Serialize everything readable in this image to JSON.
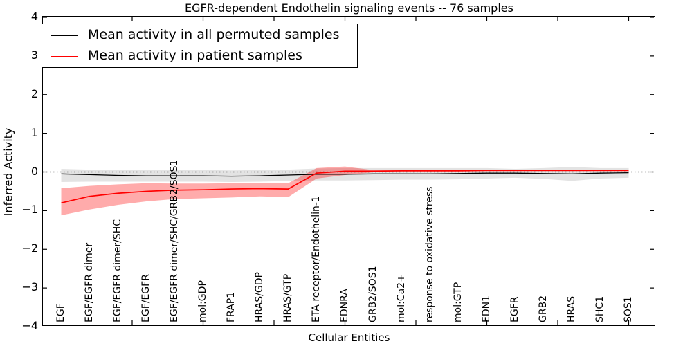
{
  "title": "EGFR-dependent Endothelin signaling events -- 76 samples",
  "axes": {
    "xlabel": "Cellular Entities",
    "ylabel": "Inferred Activity"
  },
  "legend": {
    "position": "upper left",
    "entries": [
      {
        "label": "Mean activity in all permuted samples",
        "color": "#000000"
      },
      {
        "label": "Mean activity in patient samples",
        "color": "#ff0000"
      }
    ]
  },
  "chart_data": {
    "type": "line",
    "title": "EGFR-dependent Endothelin signaling events -- 76 samples",
    "xlabel": "Cellular Entities",
    "ylabel": "Inferred Activity",
    "ylim": [
      -4,
      4
    ],
    "y_ticks": [
      4,
      3,
      2,
      1,
      0,
      -1,
      -2,
      -3,
      -4
    ],
    "grid": false,
    "zero_reference_line": "black dotted at y=0",
    "legend_position": "upper left",
    "categories": [
      "EGF",
      "EGF/EGFR dimer",
      "EGF/EGFR dimer/SHC",
      "EGF/EGFR",
      "EGF/EGFR dimer/SHC/GRB2/SOS1",
      "mol:GDP",
      "FRAP1",
      "HRAS/GDP",
      "HRAS/GTP",
      "ETA receptor/Endothelin-1",
      "EDNRA",
      "GRB2/SOS1",
      "mol:Ca2+",
      "response to oxidative stress",
      "mol:GTP",
      "EDN1",
      "EGFR",
      "GRB2",
      "HRAS",
      "SHC1",
      "SOS1"
    ],
    "series": [
      {
        "name": "Mean activity in all permuted samples",
        "color": "#000000",
        "band_color": "rgba(0,0,0,0.11)",
        "values": [
          -0.05,
          -0.07,
          -0.09,
          -0.1,
          -0.1,
          -0.1,
          -0.11,
          -0.1,
          -0.08,
          -0.06,
          -0.06,
          -0.05,
          -0.05,
          -0.05,
          -0.04,
          -0.03,
          -0.03,
          -0.04,
          -0.05,
          -0.03,
          -0.02
        ],
        "band_upper": [
          0.08,
          0.06,
          0.05,
          0.05,
          0.05,
          0.05,
          0.04,
          0.05,
          0.06,
          0.09,
          0.1,
          0.1,
          0.1,
          0.1,
          0.1,
          0.1,
          0.08,
          0.1,
          0.13,
          0.1,
          0.1
        ],
        "band_lower": [
          -0.26,
          -0.25,
          -0.25,
          -0.25,
          -0.25,
          -0.25,
          -0.26,
          -0.25,
          -0.23,
          -0.22,
          -0.22,
          -0.21,
          -0.2,
          -0.2,
          -0.19,
          -0.17,
          -0.15,
          -0.18,
          -0.23,
          -0.17,
          -0.15
        ]
      },
      {
        "name": "Mean activity in patient samples",
        "color": "#ff0000",
        "band_color": "rgba(255,0,0,0.33)",
        "values": [
          -0.8,
          -0.63,
          -0.55,
          -0.5,
          -0.47,
          -0.46,
          -0.44,
          -0.43,
          -0.44,
          -0.03,
          0.02,
          0.02,
          0.03,
          0.03,
          0.03,
          0.04,
          0.04,
          0.04,
          0.04,
          0.04,
          0.04
        ],
        "band_upper": [
          -0.42,
          -0.36,
          -0.32,
          -0.29,
          -0.3,
          -0.3,
          -0.29,
          -0.28,
          -0.29,
          0.1,
          0.14,
          0.05,
          0.05,
          0.05,
          0.05,
          0.06,
          0.06,
          0.06,
          0.06,
          0.06,
          0.06
        ],
        "band_lower": [
          -1.12,
          -0.97,
          -0.85,
          -0.76,
          -0.7,
          -0.68,
          -0.66,
          -0.63,
          -0.65,
          -0.17,
          -0.08,
          -0.01,
          0.0,
          0.01,
          0.01,
          0.02,
          0.02,
          0.02,
          0.02,
          0.02,
          0.02
        ]
      }
    ]
  }
}
